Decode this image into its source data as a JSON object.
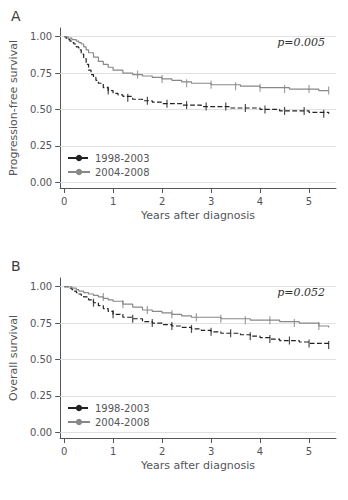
{
  "chart_data": [
    {
      "type": "line",
      "title": "A",
      "xlabel": "Years after diagnosis",
      "ylabel": "Progression-free survival",
      "annotation": "p=0.005",
      "xlim": [
        -0.08,
        5.55
      ],
      "xticks": [
        0,
        1,
        2,
        3,
        4,
        5
      ],
      "ylim": [
        -0.04,
        1.06
      ],
      "yticks": [
        {
          "value": 0.0,
          "label": "0.00"
        },
        {
          "value": 0.25,
          "label": "0.25"
        },
        {
          "value": 0.5,
          "label": "0.50"
        },
        {
          "value": 0.75,
          "label": "0.75"
        },
        {
          "value": 1.0,
          "label": "1.00"
        }
      ],
      "grid": true,
      "legend": "lower left",
      "series": [
        {
          "name": "1998-2003",
          "color": "#222222",
          "line_style": "dashed",
          "x": [
            0,
            0.04,
            0.08,
            0.12,
            0.16,
            0.2,
            0.25,
            0.3,
            0.35,
            0.4,
            0.45,
            0.5,
            0.55,
            0.6,
            0.65,
            0.7,
            0.8,
            0.9,
            1.0,
            1.1,
            1.2,
            1.4,
            1.6,
            1.8,
            2.0,
            2.2,
            2.4,
            2.6,
            2.8,
            3.0,
            3.2,
            3.4,
            3.6,
            3.8,
            4.0,
            4.2,
            4.4,
            4.6,
            4.8,
            5.0,
            5.2,
            5.4
          ],
          "values": [
            1.0,
            0.99,
            0.98,
            0.97,
            0.96,
            0.95,
            0.93,
            0.91,
            0.88,
            0.85,
            0.81,
            0.77,
            0.74,
            0.72,
            0.7,
            0.68,
            0.65,
            0.63,
            0.61,
            0.6,
            0.59,
            0.57,
            0.56,
            0.55,
            0.54,
            0.54,
            0.53,
            0.53,
            0.52,
            0.52,
            0.52,
            0.51,
            0.51,
            0.51,
            0.5,
            0.5,
            0.49,
            0.49,
            0.49,
            0.48,
            0.48,
            0.47
          ],
          "censor_x": [
            0.9,
            1.3,
            1.7,
            2.1,
            2.5,
            2.9,
            3.3,
            3.7,
            4.1,
            4.5,
            4.9,
            5.3
          ],
          "censor_y": [
            0.63,
            0.58,
            0.56,
            0.54,
            0.53,
            0.52,
            0.52,
            0.51,
            0.5,
            0.49,
            0.49,
            0.47
          ]
        },
        {
          "name": "2004-2008",
          "color": "#888888",
          "line_style": "solid",
          "x": [
            0,
            0.04,
            0.08,
            0.12,
            0.16,
            0.2,
            0.25,
            0.3,
            0.35,
            0.4,
            0.45,
            0.5,
            0.6,
            0.7,
            0.8,
            0.9,
            1.0,
            1.2,
            1.4,
            1.6,
            1.8,
            2.0,
            2.2,
            2.4,
            2.6,
            2.8,
            3.0,
            3.2,
            3.4,
            3.6,
            3.8,
            4.0,
            4.2,
            4.4,
            4.6,
            4.8,
            5.0,
            5.2,
            5.4
          ],
          "values": [
            1.0,
            1.0,
            0.99,
            0.99,
            0.98,
            0.98,
            0.97,
            0.96,
            0.95,
            0.93,
            0.91,
            0.89,
            0.86,
            0.83,
            0.81,
            0.79,
            0.77,
            0.75,
            0.74,
            0.73,
            0.72,
            0.71,
            0.7,
            0.69,
            0.68,
            0.68,
            0.67,
            0.67,
            0.67,
            0.66,
            0.66,
            0.65,
            0.65,
            0.65,
            0.64,
            0.64,
            0.64,
            0.63,
            0.63
          ],
          "censor_x": [
            1.5,
            2.0,
            2.5,
            3.0,
            3.5,
            4.0,
            4.5,
            5.0,
            5.4
          ],
          "censor_y": [
            0.74,
            0.71,
            0.68,
            0.67,
            0.66,
            0.65,
            0.64,
            0.64,
            0.63
          ]
        }
      ]
    },
    {
      "type": "line",
      "title": "B",
      "xlabel": "Years after diagnosis",
      "ylabel": "Overall survival",
      "annotation": "p=0.052",
      "xlim": [
        -0.08,
        5.55
      ],
      "xticks": [
        0,
        1,
        2,
        3,
        4,
        5
      ],
      "ylim": [
        -0.04,
        1.06
      ],
      "yticks": [
        {
          "value": 0.0,
          "label": "0.00"
        },
        {
          "value": 0.25,
          "label": "0.25"
        },
        {
          "value": 0.5,
          "label": "0.50"
        },
        {
          "value": 0.75,
          "label": "0.75"
        },
        {
          "value": 1.0,
          "label": "1.00"
        }
      ],
      "grid": true,
      "legend": "lower left",
      "series": [
        {
          "name": "1998-2003",
          "color": "#222222",
          "line_style": "dashed",
          "x": [
            0,
            0.04,
            0.08,
            0.12,
            0.16,
            0.2,
            0.25,
            0.3,
            0.35,
            0.4,
            0.5,
            0.6,
            0.7,
            0.8,
            0.9,
            1.0,
            1.2,
            1.4,
            1.6,
            1.8,
            2.0,
            2.2,
            2.4,
            2.6,
            2.8,
            3.0,
            3.2,
            3.4,
            3.6,
            3.8,
            4.0,
            4.2,
            4.4,
            4.6,
            4.8,
            5.0,
            5.2,
            5.4
          ],
          "values": [
            1.0,
            1.0,
            0.99,
            0.99,
            0.98,
            0.97,
            0.96,
            0.95,
            0.94,
            0.93,
            0.91,
            0.89,
            0.87,
            0.85,
            0.83,
            0.81,
            0.79,
            0.78,
            0.76,
            0.75,
            0.74,
            0.73,
            0.72,
            0.71,
            0.7,
            0.69,
            0.68,
            0.68,
            0.67,
            0.66,
            0.65,
            0.64,
            0.63,
            0.63,
            0.62,
            0.61,
            0.61,
            0.6
          ],
          "censor_x": [
            0.6,
            1.0,
            1.4,
            1.8,
            2.2,
            2.6,
            3.0,
            3.4,
            3.8,
            4.2,
            4.6,
            5.0,
            5.4
          ],
          "censor_y": [
            0.89,
            0.81,
            0.78,
            0.75,
            0.73,
            0.71,
            0.69,
            0.68,
            0.66,
            0.64,
            0.63,
            0.61,
            0.6
          ]
        },
        {
          "name": "2004-2008",
          "color": "#888888",
          "line_style": "solid",
          "x": [
            0,
            0.04,
            0.08,
            0.12,
            0.16,
            0.2,
            0.25,
            0.3,
            0.35,
            0.4,
            0.5,
            0.6,
            0.7,
            0.8,
            0.9,
            1.0,
            1.2,
            1.4,
            1.6,
            1.8,
            2.0,
            2.2,
            2.4,
            2.6,
            2.8,
            3.0,
            3.2,
            3.4,
            3.6,
            3.8,
            4.0,
            4.2,
            4.4,
            4.6,
            4.8,
            5.0,
            5.2,
            5.4
          ],
          "values": [
            1.0,
            1.0,
            1.0,
            1.0,
            0.99,
            0.99,
            0.98,
            0.97,
            0.97,
            0.96,
            0.95,
            0.94,
            0.93,
            0.92,
            0.91,
            0.9,
            0.88,
            0.86,
            0.84,
            0.83,
            0.82,
            0.81,
            0.8,
            0.79,
            0.79,
            0.79,
            0.78,
            0.78,
            0.78,
            0.77,
            0.77,
            0.77,
            0.76,
            0.76,
            0.75,
            0.75,
            0.73,
            0.72
          ],
          "censor_x": [
            0.8,
            1.2,
            1.7,
            2.2,
            2.7,
            3.2,
            3.7,
            4.2,
            4.7,
            5.2
          ],
          "censor_y": [
            0.93,
            0.88,
            0.84,
            0.81,
            0.79,
            0.78,
            0.77,
            0.77,
            0.75,
            0.73
          ]
        }
      ]
    }
  ]
}
